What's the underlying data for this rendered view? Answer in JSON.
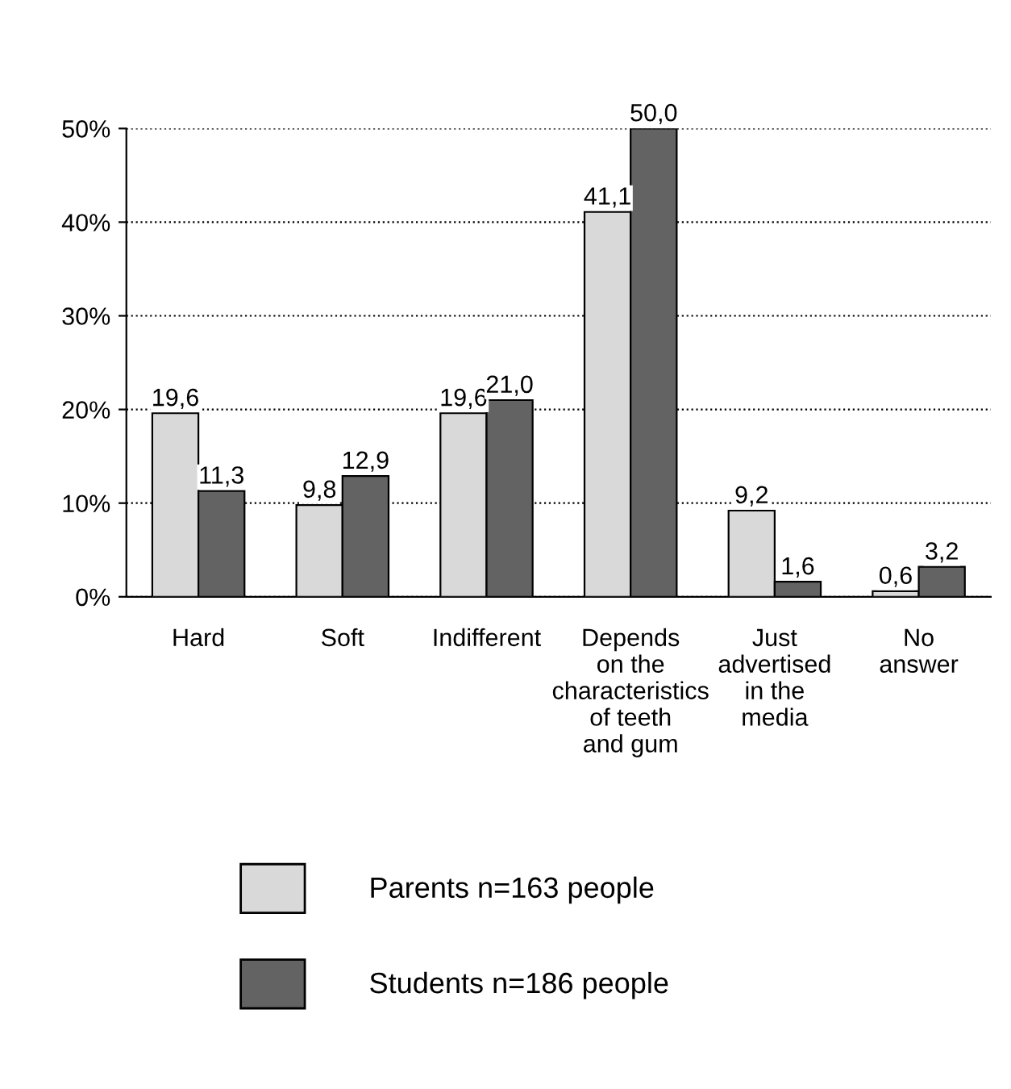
{
  "chart_data": {
    "type": "bar",
    "categories": [
      "Hard",
      "Soft",
      "Indifferent",
      "Depends\non the\ncharacteristics\nof teeth\nand gum",
      "Just\nadvertised\nin the\nmedia",
      "No\nanswer"
    ],
    "series": [
      {
        "name": "Parents n=163 people",
        "color": "#d9d9d9",
        "values": [
          19.6,
          9.8,
          19.6,
          41.1,
          9.2,
          0.6
        ],
        "value_labels": [
          "19,6",
          "9,8",
          "19,6",
          "41,1",
          "9,2",
          "0,6"
        ]
      },
      {
        "name": "Students n=186 people",
        "color": "#636363",
        "values": [
          11.3,
          12.9,
          21.0,
          50.0,
          1.6,
          3.2
        ],
        "value_labels": [
          "11,3",
          "12,9",
          "21,0",
          "50,0",
          "1,6",
          "3,2"
        ]
      }
    ],
    "ylim": [
      0,
      50
    ],
    "yticks": [
      {
        "value": 0,
        "label": "0%"
      },
      {
        "value": 10,
        "label": "10%"
      },
      {
        "value": 20,
        "label": "20%"
      },
      {
        "value": 30,
        "label": "30%"
      },
      {
        "value": 40,
        "label": "40%"
      },
      {
        "value": 50,
        "label": "50%"
      }
    ],
    "grid": "y",
    "line_style": "dotted",
    "legend": "bottom"
  }
}
